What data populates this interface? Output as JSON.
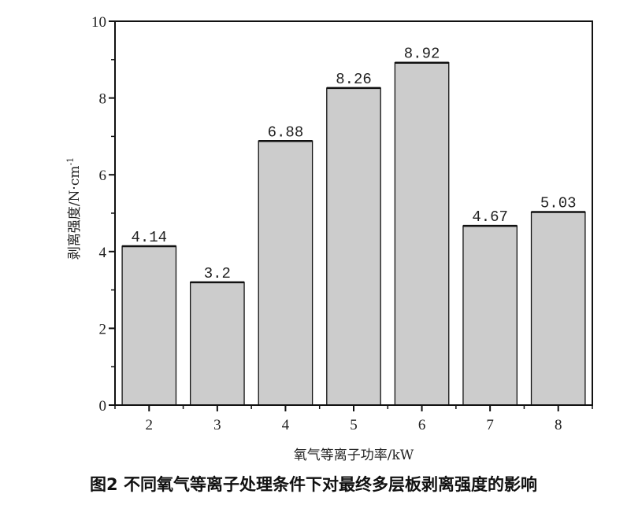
{
  "caption": "图2 不同氧气等离子处理条件下对最终多层板剥离强度的影响",
  "chart_data": {
    "type": "bar",
    "categories": [
      "2",
      "3",
      "4",
      "5",
      "6",
      "7",
      "8"
    ],
    "x": [
      2,
      3,
      4,
      5,
      6,
      7,
      8
    ],
    "values": [
      4.14,
      3.2,
      6.88,
      8.26,
      8.92,
      4.67,
      5.03
    ],
    "data_labels": [
      "4.14",
      "3.2",
      "6.88",
      "8.26",
      "8.92",
      "4.67",
      "5.03"
    ],
    "xlabel": "氧气等离子功率/kW",
    "ylabel": "剥离强度/N·cm",
    "ylabel_sup": "-1",
    "xlim": [
      1.5,
      8.5
    ],
    "ylim": [
      0,
      10
    ],
    "yticks": [
      0,
      2,
      4,
      6,
      8,
      10
    ],
    "grid": false,
    "bar_color": "#cccccc",
    "edge_color": "#111111"
  }
}
